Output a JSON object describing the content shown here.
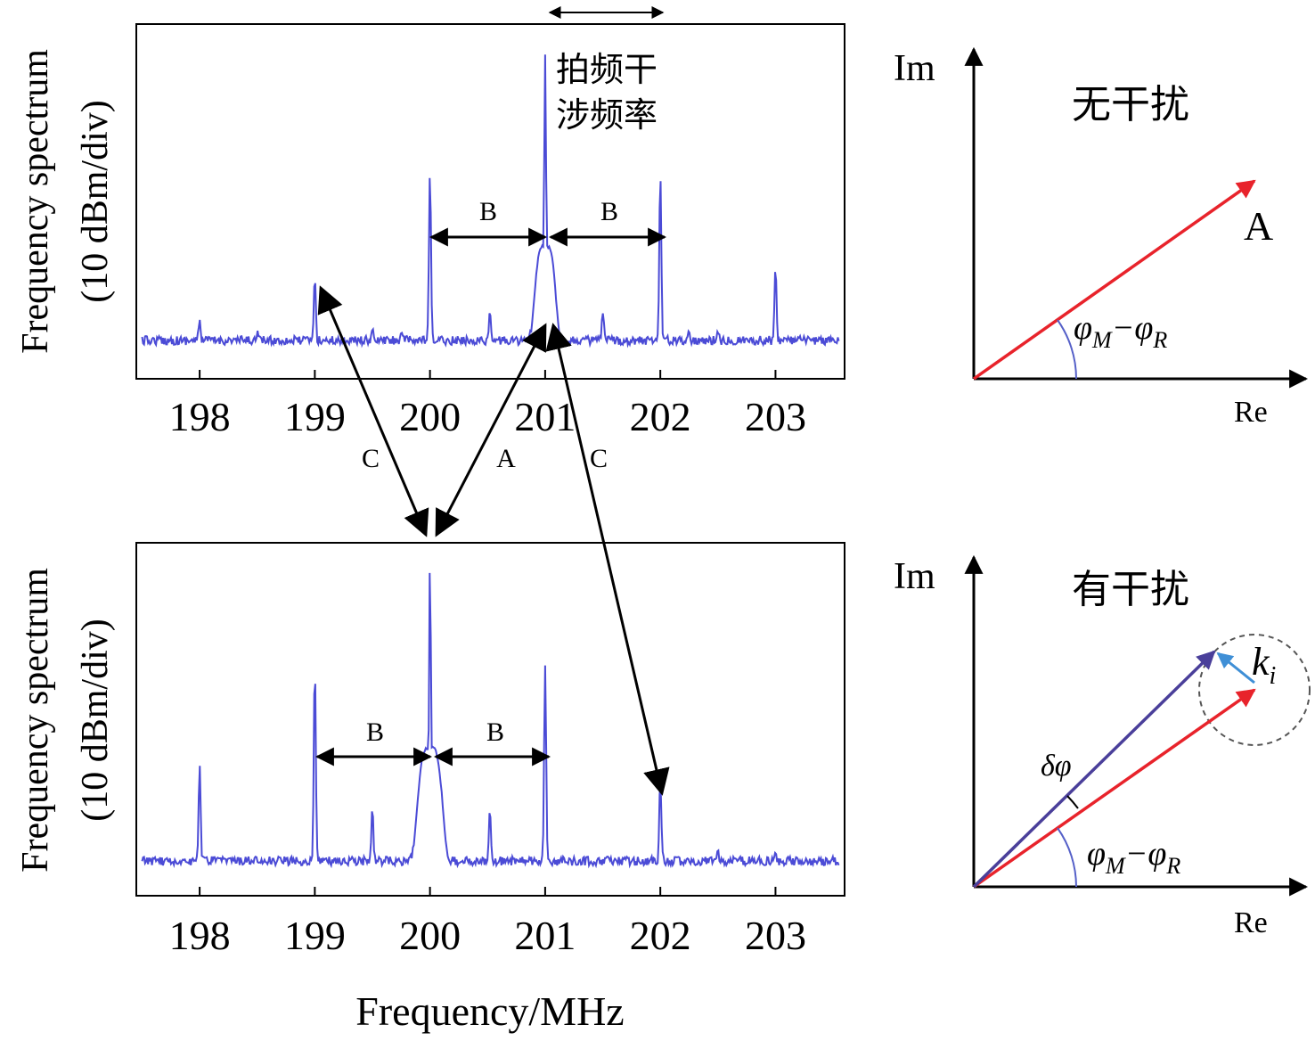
{
  "spectra": {
    "y_label_line1": "Frequency spectrum",
    "y_label_line2": "(10 dBm/div)",
    "x_label": "Frequency/MHz",
    "ticks": [
      "198",
      "199",
      "200",
      "201",
      "202",
      "203"
    ],
    "tick_values": [
      198,
      199,
      200,
      201,
      202,
      203
    ],
    "xlim": [
      197.45,
      203.6
    ],
    "top": {
      "annotation_line1": "拍频干",
      "annotation_line2": "涉频率",
      "span_label_left": "B",
      "span_label_right": "B",
      "peaks": [
        {
          "f": 198.0,
          "h": 0.07
        },
        {
          "f": 198.5,
          "h": 0.03
        },
        {
          "f": 199.0,
          "h": 0.22
        },
        {
          "f": 199.5,
          "h": 0.03
        },
        {
          "f": 199.75,
          "h": 0.03
        },
        {
          "f": 200.0,
          "h": 0.59
        },
        {
          "f": 200.52,
          "h": 0.1
        },
        {
          "f": 201.0,
          "h": 1.0
        },
        {
          "f": 201.5,
          "h": 0.1
        },
        {
          "f": 202.0,
          "h": 0.59
        },
        {
          "f": 202.25,
          "h": 0.04
        },
        {
          "f": 202.5,
          "h": 0.04
        },
        {
          "f": 203.0,
          "h": 0.26
        }
      ],
      "hump": {
        "f": 201.0,
        "h": 0.33,
        "width": 0.1
      }
    },
    "bottom": {
      "span_label_left": "B",
      "span_label_right": "B",
      "peaks": [
        {
          "f": 198.0,
          "h": 0.32
        },
        {
          "f": 199.0,
          "h": 0.66
        },
        {
          "f": 199.5,
          "h": 0.18
        },
        {
          "f": 200.0,
          "h": 1.0
        },
        {
          "f": 200.52,
          "h": 0.18
        },
        {
          "f": 201.0,
          "h": 0.66
        },
        {
          "f": 202.0,
          "h": 0.28
        },
        {
          "f": 202.5,
          "h": 0.03
        },
        {
          "f": 203.0,
          "h": 0.03
        }
      ],
      "hump": {
        "f": 200.0,
        "h": 0.38,
        "width": 0.12
      }
    },
    "mapping_labels": {
      "left_c": "C",
      "middle_a": "A",
      "right_c": "C"
    }
  },
  "phasors": {
    "top": {
      "title": "无干扰",
      "im_label": "Im",
      "re_label": "Re",
      "vector_label": "A",
      "angle_label": "φ",
      "angle_sub_1": "M",
      "angle_minus": "−",
      "angle_sub_2": "R"
    },
    "bottom": {
      "title": "有干扰",
      "im_label": "Im",
      "re_label": "Re",
      "delta_label": "δφ",
      "k_label": "k",
      "k_sub": "i",
      "angle_label": "φ",
      "angle_sub_1": "M",
      "angle_minus": "−",
      "angle_sub_2": "R"
    }
  },
  "colors": {
    "spectrum_blue": "#4b4bd6",
    "noise_gray": "#555555",
    "phasor_red": "#e8232b",
    "phasor_purple": "#4a3f9a",
    "k_blue": "#3f8fd6",
    "angle_arc": "#5560c8"
  }
}
